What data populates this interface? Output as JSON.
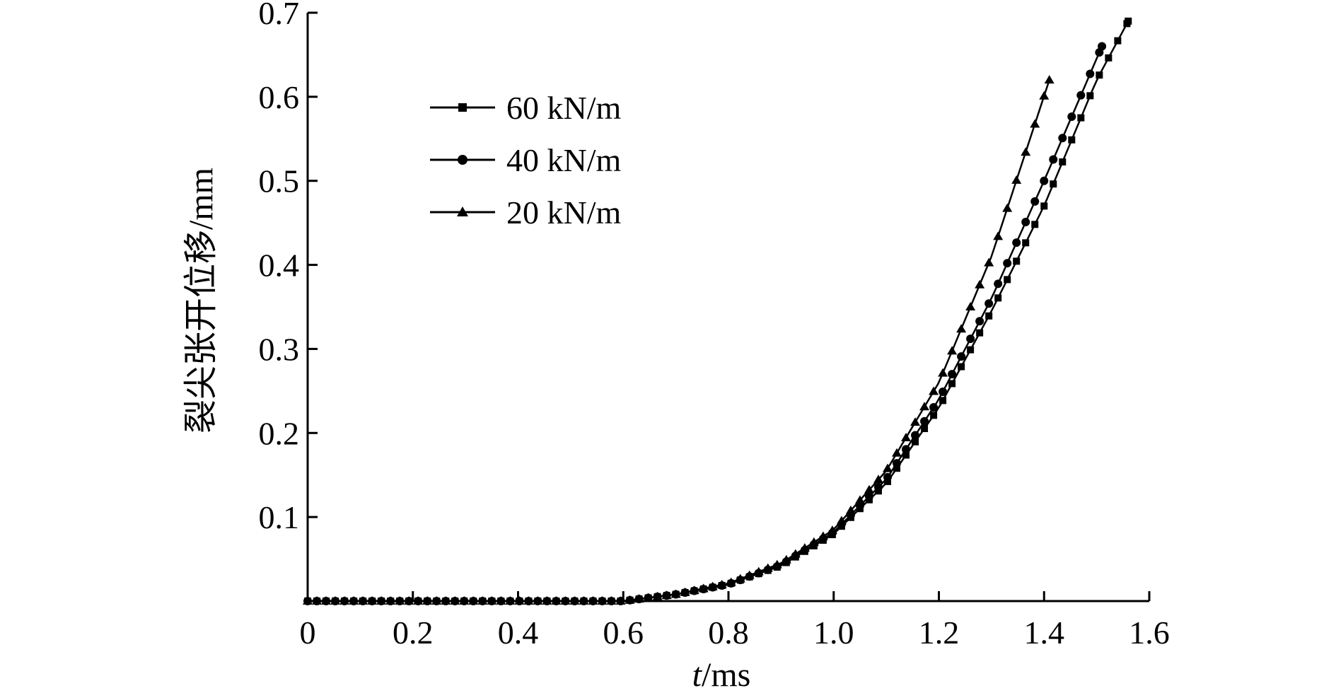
{
  "chart_data": {
    "type": "line",
    "title": "",
    "xlabel_italic": "t",
    "xlabel_rest": "/ms",
    "ylabel": "裂尖张开位移/mm",
    "xlim": [
      0,
      1.6
    ],
    "ylim": [
      0,
      0.7
    ],
    "x_ticks": [
      "0",
      "0.2",
      "0.4",
      "0.6",
      "0.8",
      "1.0",
      "1.2",
      "1.4",
      "1.6"
    ],
    "y_ticks": [
      "0.1",
      "0.2",
      "0.3",
      "0.4",
      "0.5",
      "0.6",
      "0.7"
    ],
    "grid": false,
    "legend_position": "top-left",
    "series": [
      {
        "name": "60 kN/m",
        "marker": "square",
        "x_end": 1.56,
        "y_end": 0.69,
        "points": [
          [
            0.0,
            0.0
          ],
          [
            0.6,
            0.0
          ],
          [
            0.7,
            0.008
          ],
          [
            0.8,
            0.02
          ],
          [
            0.9,
            0.042
          ],
          [
            1.0,
            0.08
          ],
          [
            1.1,
            0.14
          ],
          [
            1.2,
            0.23
          ],
          [
            1.3,
            0.345
          ],
          [
            1.4,
            0.47
          ],
          [
            1.5,
            0.62
          ],
          [
            1.56,
            0.69
          ]
        ]
      },
      {
        "name": "40 kN/m",
        "marker": "circle",
        "x_end": 1.51,
        "y_end": 0.66,
        "points": [
          [
            0.0,
            0.0
          ],
          [
            0.6,
            0.0
          ],
          [
            0.7,
            0.008
          ],
          [
            0.8,
            0.02
          ],
          [
            0.9,
            0.043
          ],
          [
            1.0,
            0.082
          ],
          [
            1.1,
            0.145
          ],
          [
            1.2,
            0.24
          ],
          [
            1.3,
            0.36
          ],
          [
            1.4,
            0.5
          ],
          [
            1.51,
            0.66
          ]
        ]
      },
      {
        "name": "20 kN/m",
        "marker": "triangle",
        "x_end": 1.41,
        "y_end": 0.62,
        "points": [
          [
            0.0,
            0.0
          ],
          [
            0.6,
            0.0
          ],
          [
            0.7,
            0.008
          ],
          [
            0.8,
            0.021
          ],
          [
            0.9,
            0.045
          ],
          [
            1.0,
            0.085
          ],
          [
            1.1,
            0.155
          ],
          [
            1.2,
            0.26
          ],
          [
            1.3,
            0.41
          ],
          [
            1.41,
            0.62
          ]
        ]
      }
    ]
  }
}
